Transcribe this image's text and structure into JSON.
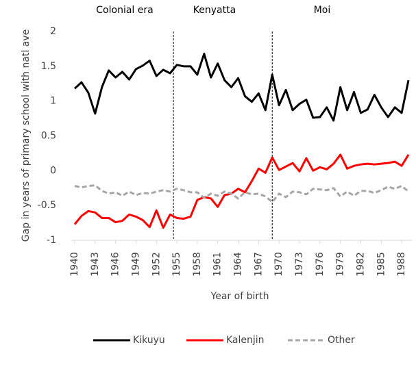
{
  "chart_data": {
    "type": "line",
    "xlabel": "Year of birth",
    "ylabel": "Gap in years of primary school with natl ave",
    "annotations": [
      "Colonial era",
      "Kenyatta",
      "Moi"
    ],
    "era_boundaries": [
      1954.5,
      1969
    ],
    "x": [
      1940,
      1941,
      1942,
      1943,
      1944,
      1945,
      1946,
      1947,
      1948,
      1949,
      1950,
      1951,
      1952,
      1953,
      1954,
      1955,
      1956,
      1957,
      1958,
      1959,
      1960,
      1961,
      1962,
      1963,
      1964,
      1965,
      1966,
      1967,
      1968,
      1969,
      1970,
      1971,
      1972,
      1973,
      1974,
      1975,
      1976,
      1977,
      1978,
      1979,
      1980,
      1981,
      1982,
      1983,
      1984,
      1985,
      1986,
      1987,
      1988,
      1989
    ],
    "xlim": [
      1939.5,
      1989.5
    ],
    "xticks": [
      1940,
      1943,
      1946,
      1949,
      1952,
      1955,
      1958,
      1961,
      1964,
      1967,
      1970,
      1973,
      1976,
      1979,
      1982,
      1985,
      1988
    ],
    "ylim": [
      -1,
      2
    ],
    "yticks": [
      2,
      1.5,
      1,
      0.5,
      0,
      -0.5,
      -1
    ],
    "grid": false,
    "legend": "bottom",
    "series": [
      {
        "name": "Kikuyu",
        "color": "#000000",
        "dash": false,
        "values": [
          1.18,
          1.27,
          1.12,
          0.82,
          1.2,
          1.44,
          1.34,
          1.42,
          1.31,
          1.46,
          1.51,
          1.58,
          1.36,
          1.45,
          1.4,
          1.52,
          1.5,
          1.5,
          1.38,
          1.68,
          1.34,
          1.54,
          1.3,
          1.2,
          1.33,
          1.07,
          0.99,
          1.11,
          0.87,
          1.38,
          0.94,
          1.16,
          0.87,
          0.96,
          1.02,
          0.76,
          0.77,
          0.91,
          0.72,
          1.2,
          0.87,
          1.13,
          0.83,
          0.88,
          1.09,
          0.91,
          0.77,
          0.91,
          0.83,
          1.3
        ]
      },
      {
        "name": "Kalenjin",
        "color": "#ff0000",
        "dash": false,
        "values": [
          -0.77,
          -0.65,
          -0.58,
          -0.6,
          -0.68,
          -0.68,
          -0.74,
          -0.72,
          -0.63,
          -0.66,
          -0.71,
          -0.81,
          -0.57,
          -0.82,
          -0.63,
          -0.68,
          -0.69,
          -0.66,
          -0.42,
          -0.38,
          -0.4,
          -0.52,
          -0.35,
          -0.33,
          -0.26,
          -0.31,
          -0.15,
          0.03,
          -0.03,
          0.19,
          0.01,
          0.06,
          0.11,
          -0.01,
          0.18,
          0.0,
          0.05,
          0.02,
          0.1,
          0.23,
          0.03,
          0.07,
          0.09,
          0.1,
          0.09,
          0.1,
          0.11,
          0.13,
          0.07,
          0.23
        ]
      },
      {
        "name": "Other",
        "color": "#a6a6a6",
        "dash": true,
        "values": [
          -0.22,
          -0.24,
          -0.22,
          -0.21,
          -0.29,
          -0.33,
          -0.31,
          -0.36,
          -0.3,
          -0.35,
          -0.32,
          -0.33,
          -0.3,
          -0.28,
          -0.3,
          -0.26,
          -0.28,
          -0.31,
          -0.31,
          -0.39,
          -0.33,
          -0.36,
          -0.3,
          -0.33,
          -0.4,
          -0.31,
          -0.34,
          -0.33,
          -0.37,
          -0.45,
          -0.33,
          -0.38,
          -0.3,
          -0.31,
          -0.34,
          -0.26,
          -0.27,
          -0.28,
          -0.25,
          -0.37,
          -0.3,
          -0.36,
          -0.29,
          -0.29,
          -0.32,
          -0.28,
          -0.23,
          -0.26,
          -0.22,
          -0.3
        ]
      }
    ]
  }
}
